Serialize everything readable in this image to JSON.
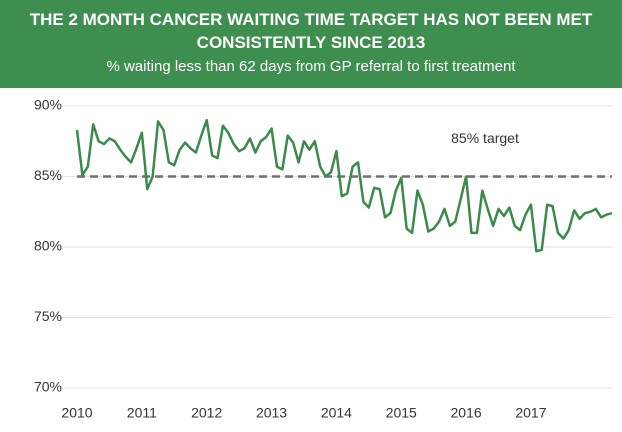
{
  "chart_data": {
    "type": "line",
    "title": "THE 2 MONTH CANCER WAITING TIME TARGET HAS NOT BEEN MET CONSISTENTLY SINCE 2013",
    "subtitle": "% waiting less than 62 days from GP referral to first treatment",
    "categories": [
      "2010",
      null,
      null,
      null,
      null,
      null,
      null,
      null,
      null,
      null,
      null,
      null,
      "2011",
      null,
      null,
      null,
      null,
      null,
      null,
      null,
      null,
      null,
      null,
      null,
      "2012",
      null,
      null,
      null,
      null,
      null,
      null,
      null,
      null,
      null,
      null,
      null,
      "2013",
      null,
      null,
      null,
      null,
      null,
      null,
      null,
      null,
      null,
      null,
      null,
      "2014",
      null,
      null,
      null,
      null,
      null,
      null,
      null,
      null,
      null,
      null,
      null,
      "2015",
      null,
      null,
      null,
      null,
      null,
      null,
      null,
      null,
      null,
      null,
      null,
      "2016",
      null,
      null,
      null,
      null,
      null,
      null,
      null,
      null,
      null,
      null,
      null,
      "2017",
      null,
      null,
      null,
      null,
      null,
      null,
      null,
      null,
      null,
      null,
      null,
      null,
      null,
      null,
      null
    ],
    "series": [
      {
        "name": "% waiting less than 62 days",
        "color": "#3a8a4c",
        "values": [
          88.3,
          85.1,
          85.7,
          88.7,
          87.5,
          87.3,
          87.7,
          87.5,
          86.9,
          86.4,
          86.0,
          87.0,
          88.1,
          84.1,
          85.0,
          88.9,
          88.3,
          86.0,
          85.8,
          86.9,
          87.4,
          87.0,
          86.7,
          87.9,
          89.0,
          86.5,
          86.3,
          88.6,
          88.1,
          87.3,
          86.8,
          87.0,
          87.7,
          86.7,
          87.5,
          87.8,
          88.4,
          85.7,
          85.5,
          87.9,
          87.4,
          86.0,
          87.5,
          86.9,
          87.5,
          85.7,
          85.0,
          85.3,
          86.8,
          83.6,
          83.8,
          85.7,
          86.0,
          83.2,
          82.8,
          84.2,
          84.1,
          82.1,
          82.4,
          84.0,
          84.9,
          81.3,
          81.0,
          84.0,
          83.0,
          81.1,
          81.3,
          81.8,
          82.7,
          81.5,
          81.8,
          83.4,
          85.0,
          81.0,
          81.0,
          84.0,
          82.7,
          81.5,
          82.7,
          82.2,
          82.8,
          81.5,
          81.2,
          82.3,
          83.0,
          79.7,
          79.8,
          83.0,
          82.9,
          81.0,
          80.6,
          81.2,
          82.6,
          82.0,
          82.4,
          82.5,
          82.7,
          82.1,
          82.3,
          82.4
        ]
      }
    ],
    "target": 85,
    "target_label": "85% target",
    "target_color": "#707070",
    "ylim": [
      70,
      90
    ],
    "yticks": [
      {
        "value": 70,
        "label": "70%"
      },
      {
        "value": 75,
        "label": "75%"
      },
      {
        "value": 80,
        "label": "80%"
      },
      {
        "value": 85,
        "label": "85%"
      },
      {
        "value": 90,
        "label": "90%"
      }
    ],
    "grid": true
  }
}
